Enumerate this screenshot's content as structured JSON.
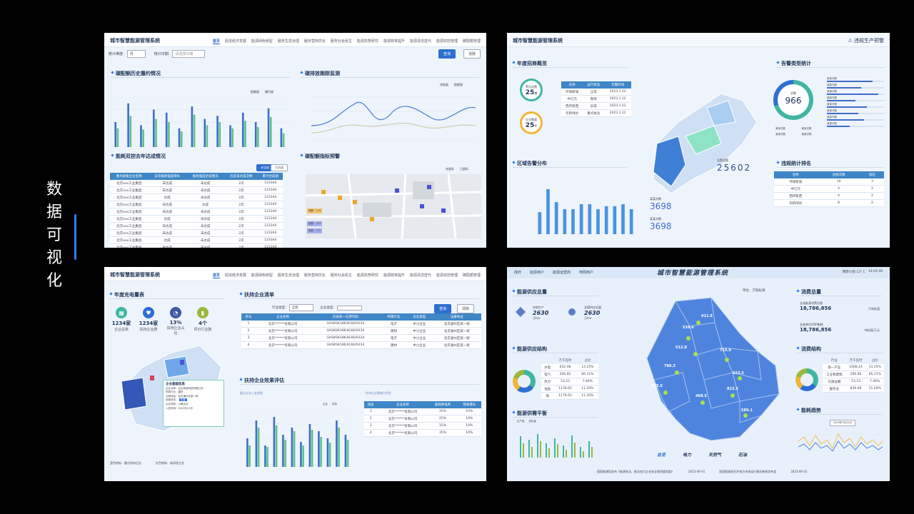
{
  "side_title": [
    "数",
    "据",
    "可",
    "视",
    "化"
  ],
  "p1": {
    "app_title": "城市智慧能源管理系统",
    "nav": [
      "首页",
      "促进经济发展",
      "能源绿色转型",
      "服务生态治理",
      "服务营商优化",
      "服务社会民生",
      "能源态势研究",
      "能源效率提升",
      "能源清洁替代",
      "能源双控管理",
      "碳配额管理"
    ],
    "filter1_label": "统计维度:",
    "filter1_value": "月",
    "filter2_label": "统计日期:",
    "filter2_ph": "请选择日期",
    "btn_query": "查询",
    "btn_reset": "清除",
    "sec1": "碳配额历史履约情况",
    "sec2": "碳排放跟踪监测",
    "sec3": "能耗双控去年达成情况",
    "sec4": "碳配额指标预警",
    "legend1": [
      "配额量",
      "履约量"
    ],
    "legend2": [
      "排放量",
      "配额量"
    ],
    "tab_a": "未达成",
    "tab_b": "已达成",
    "table_head": [
      "重点耗能企业名称",
      "去年能耗强度目标",
      "能耗强度达成情况",
      "历史未达成次数",
      "累计达成值"
    ],
    "table_rows": [
      [
        "北京xxx工业集团",
        "未达成",
        "未达成",
        "2次",
        "123344"
      ],
      [
        "北京xxx工业集团",
        "未达成",
        "未达成",
        "2次",
        "123344"
      ],
      [
        "北京xxx工业集团",
        "达成",
        "未达成",
        "2次",
        "123344"
      ],
      [
        "北京xxx工业集团",
        "未达成",
        "达成",
        "2次",
        "123344"
      ],
      [
        "北京xxx工业集团",
        "未达成",
        "未达成",
        "2次",
        "123344"
      ],
      [
        "北京xxx工业集团",
        "达成",
        "未达成",
        "2次",
        "123344"
      ],
      [
        "北京xxx工业集团",
        "未达成",
        "未达成",
        "2次",
        "123344"
      ],
      [
        "北京xxx工业集团",
        "未达成",
        "未达成",
        "2次",
        "123344"
      ],
      [
        "北京xxx工业集团",
        "达成",
        "未达成",
        "2次",
        "123344"
      ],
      [
        "北京xxx工业集团",
        "未达成",
        "未达成",
        "2次",
        "123344"
      ]
    ],
    "bars": [
      [
        40,
        30
      ],
      [
        70,
        50
      ],
      [
        35,
        28
      ],
      [
        60,
        45
      ],
      [
        55,
        40
      ],
      [
        30,
        25
      ],
      [
        65,
        52
      ],
      [
        45,
        35
      ],
      [
        50,
        40
      ],
      [
        35,
        30
      ],
      [
        55,
        42
      ],
      [
        40,
        32
      ],
      [
        62,
        48
      ],
      [
        30,
        22
      ]
    ],
    "map_legend": [
      "未超标",
      "已超标"
    ],
    "map_tags": [
      "配额：123",
      "配额：123",
      "配额：123"
    ]
  },
  "p2": {
    "app_title": "城市智慧能源管理系统",
    "alert": "违规生产预警",
    "sec1": "年度招商概览",
    "sec2": "告警类型统计",
    "sec3": "区域告警分布",
    "sec4": "违规统计排名",
    "ring1_label": "警告次数",
    "ring1_value": "25",
    "ring1_unit": "次",
    "ring2_label": "企业数量",
    "ring2_value": "25",
    "ring2_unit": "个",
    "table1_head": [
      "名称",
      "运行状态",
      "告警时间"
    ],
    "table1_rows": [
      [
        "环球新城",
        "正常",
        "2023.1.12"
      ],
      [
        "中亿元",
        "暂停",
        "2023.1.12"
      ],
      [
        "西环新西",
        "异常",
        "2023.1.12"
      ],
      [
        "华新绿谷",
        "重点关注",
        "2023.1.12"
      ]
    ],
    "donut_label": "总数",
    "donut_value": "966",
    "legend": [
      "某某次数",
      "某某次数",
      "某某次数",
      "某某次数"
    ],
    "hbars": [
      [
        "某某次数",
        0.8
      ],
      [
        "某某次数",
        0.6
      ],
      [
        "某某次数",
        0.9
      ],
      [
        "某某次数",
        0.5
      ],
      [
        "某某次数",
        0.7
      ],
      [
        "某某次数",
        0.55
      ],
      [
        "某某次数",
        0.65
      ],
      [
        "某某次数",
        0.4
      ]
    ],
    "total_label": "告警总数",
    "total_value": "25602",
    "v1_label": "某某次数",
    "v1": "3698",
    "v2_label": "某某次数",
    "v2": "3698",
    "bar_vals": [
      22,
      45,
      32,
      25,
      25,
      30,
      30,
      25,
      28,
      28,
      30,
      25
    ],
    "rank_head": [
      "名称",
      "违规次数",
      "排名"
    ],
    "rank_rows": [
      [
        "环球新城",
        "10",
        "3"
      ],
      [
        "中亿元",
        "4",
        "2"
      ],
      [
        "西环新西",
        "4",
        "2"
      ],
      [
        "华新绿谷",
        "8",
        "2"
      ]
    ]
  },
  "p3": {
    "app_title": "城市智慧能源管理系统",
    "nav": [
      "首页",
      "促进经济发展",
      "能源绿色转型",
      "服务生态治理",
      "服务营商优化",
      "服务社会民生",
      "能源态势研究",
      "能源效率提升",
      "能源清洁替代",
      "能源双控管理",
      "碳配额管理"
    ],
    "sec1": "年度充电量表",
    "sec2": "扶持企业清单",
    "sec3": "扶持企业效果评估",
    "kpis": [
      [
        "1234家",
        "企业总数"
      ],
      [
        "1234家",
        "扶持企业数"
      ],
      [
        "13%",
        "扶持企业占比"
      ],
      [
        "4个",
        "评价行业数"
      ]
    ],
    "filter1": "行业类型:",
    "filter1_val": "全部",
    "filter2": "企业类型:",
    "btn_query": "查询",
    "btn_reset": "清除",
    "list_head": [
      "序号",
      "企业名称",
      "社会统一信用代码",
      "所属行业",
      "企业类型",
      "注册地址"
    ],
    "list_rows": [
      [
        "1",
        "北京******有限公司",
        "GHSKSK186363829334",
        "电子",
        "中小企业",
        "北京通州区某一街"
      ],
      [
        "2",
        "北京******有限公司",
        "GHSKSK186363829334",
        "建材",
        "中小企业",
        "北京通州区某一街"
      ],
      [
        "3",
        "北京******有限公司",
        "GHSKSK186363829334",
        "电子",
        "中小企业",
        "北京通州区某一街"
      ],
      [
        "4",
        "北京******有限公司",
        "GHSKSK186363829334",
        "建材",
        "中小企业",
        "北京通州区某一街"
      ]
    ],
    "popup_title": "企业基础信息",
    "popup_lines": [
      "企业名称：北京希诺科技有限公司",
      "所属行业：建材",
      "注册地址：北京通州区某一街",
      "经营状态：",
      "企业类型：小微企业",
      "入驻时间：2023年12月"
    ],
    "popup_tag": "在营",
    "chart_title": "重点企业入驻趋势",
    "legend": [
      "企业",
      "扶持"
    ],
    "table_title": "扶持企业营商力评估",
    "eval_head": [
      "排名",
      "企业名称",
      "能耗降低率",
      "营收增长"
    ],
    "eval_rows": [
      [
        "1",
        "北京******有限公司",
        "35%",
        "10%"
      ],
      [
        "2",
        "北京******有限公司",
        "25%",
        "10%"
      ],
      [
        "3",
        "北京******有限公司",
        "15%",
        "10%"
      ],
      [
        "4",
        "北京******有限公司",
        "35%",
        "10%"
      ]
    ],
    "map_legend1": "蓝色地标：重点扶持企业",
    "map_legend2": "红色地标：扇风险企业",
    "bars": [
      [
        40,
        30
      ],
      [
        65,
        55
      ],
      [
        30,
        28
      ],
      [
        70,
        58
      ],
      [
        45,
        38
      ],
      [
        55,
        50
      ],
      [
        35,
        30
      ],
      [
        60,
        52
      ],
      [
        50,
        42
      ],
      [
        40,
        34
      ],
      [
        65,
        55
      ],
      [
        45,
        38
      ]
    ]
  },
  "p4": {
    "app_title": "城市智慧能源管理系统",
    "tabs_left": [
      "政府",
      "能源用户",
      "能源运营商",
      "电网用户"
    ],
    "weather": "晴转小雨 13° C",
    "time": "14:05:28",
    "sec1": "能源供应总量",
    "sec2": "能源供应结构",
    "sec3": "能源供需平衡",
    "sec4": "消费总量",
    "sec5": "消费结构",
    "sec6": "能耗趋势",
    "s1_label": "本地生产",
    "s1_value": "2630",
    "s1_unit": "万tce",
    "s2_label": "全国供应总量",
    "s2_value": "2630",
    "s2_unit": "万tce",
    "struct_head": [
      "",
      "万千瓦时",
      "占比"
    ],
    "struct_rows": [
      [
        "水电",
        "632.08",
        "13.25%"
      ],
      [
        "电气",
        "206.82",
        "66.11%"
      ],
      [
        "热力",
        "53.23",
        "7.46%"
      ],
      [
        "油品",
        "1178.62",
        "11.20%"
      ],
      [
        "煤",
        "1178.62",
        "11.20%"
      ]
    ],
    "unit": "单位：万吨标煤",
    "map_vals": [
      "411.9",
      "539.6",
      "512.8",
      "715.9",
      "786.3",
      "423.5",
      "823.5",
      "923.5",
      "468.5",
      "589.1"
    ],
    "map_names": [
      "河北",
      "静安",
      "朝阳",
      "通州",
      "西城",
      "大兴",
      "丰台",
      "顺义",
      "海淀",
      "怀柔",
      "东城",
      "昌平",
      "密云",
      "平谷",
      "门头沟",
      "石景山",
      "房山",
      "延庆"
    ],
    "bottom_tabs": [
      "总览",
      "电力",
      "天然气",
      "石油"
    ],
    "c1_value": "18,786,856",
    "c1_unit": "万吨标煤",
    "c2_value": "18,786,856",
    "c2_unit": "吨标煤/万元",
    "c1_label": "全省能源消费总量",
    "c2_label": "全省单位GDP能耗",
    "cons_head": [
      "行业",
      "万千瓦时",
      "占比"
    ],
    "cons_rows": [
      [
        "第一产业",
        "1008.14",
        "13.25%"
      ],
      [
        "工业和建筑",
        "206.82",
        "66.11%"
      ],
      [
        "交通运输",
        "53.23",
        "7.46%"
      ],
      [
        "服务业",
        "839.66",
        "11.20%"
      ]
    ],
    "balance_legend": [
      "生产量",
      "供应量"
    ],
    "date_pill": "2023年3月12日",
    "news1": "国家能源局发布《能源安全、推动电力企业安全高质量发展》",
    "news1_date": "2023-06-01",
    "news2": "国家能源局召开电力市场运行情况新闻发布会",
    "news2_date": "2023-06-01"
  }
}
